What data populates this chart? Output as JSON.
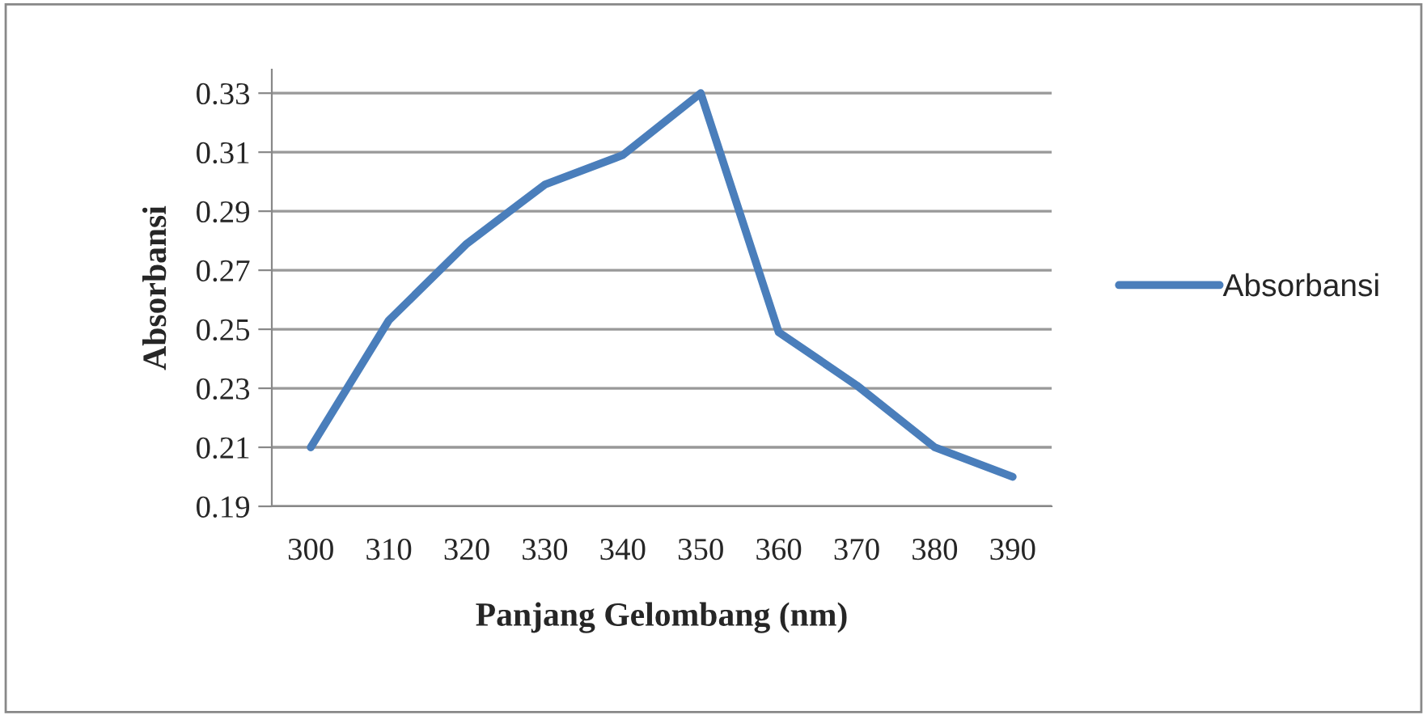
{
  "chart_data": {
    "type": "line",
    "xlabel": "Panjang Gelombang (nm)",
    "ylabel": "Absorbansi",
    "categories": [
      "300",
      "310",
      "320",
      "330",
      "340",
      "350",
      "360",
      "370",
      "380",
      "390"
    ],
    "series": [
      {
        "name": "Absorbansi",
        "color": "#4a7ebb",
        "values": [
          0.21,
          0.253,
          0.279,
          0.299,
          0.309,
          0.33,
          0.249,
          0.231,
          0.21,
          0.2
        ]
      }
    ],
    "ylim": [
      0.19,
      0.338
    ],
    "yticks": [
      0.19,
      0.21,
      0.23,
      0.25,
      0.27,
      0.29,
      0.31,
      0.33
    ],
    "grid": "y",
    "legend": "right",
    "marker": "none",
    "line_style": "solid"
  }
}
